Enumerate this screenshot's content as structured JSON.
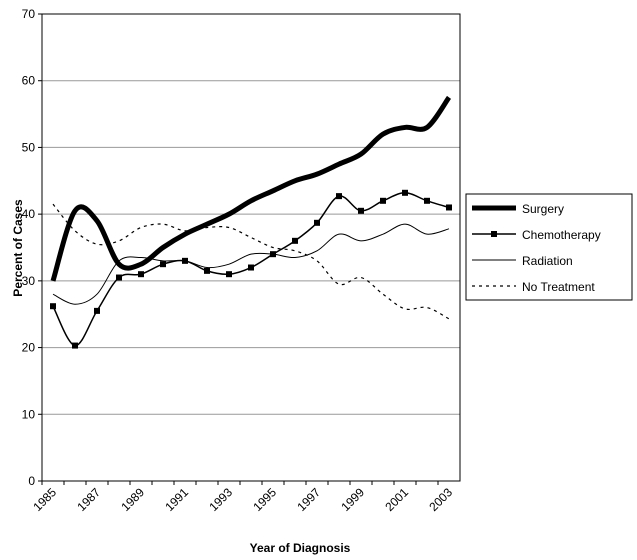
{
  "chart_data": {
    "type": "line",
    "x_label": "Year of Diagnosis",
    "y_label": "Percent of Cases",
    "categories": [
      "1985",
      null,
      "1987",
      null,
      "1989",
      null,
      "1991",
      null,
      "1993",
      null,
      "1995",
      null,
      "1997",
      null,
      "1999",
      null,
      "2001",
      null,
      "2003"
    ],
    "ylim": [
      0,
      70
    ],
    "yticks": [
      0,
      10,
      20,
      30,
      40,
      50,
      60,
      70
    ],
    "grid": true,
    "legend": "right",
    "series": [
      {
        "name": "Surgery",
        "color": "#000000",
        "width": 5,
        "dash": "solid",
        "marker": "none",
        "values": [
          30,
          40.5,
          39,
          32.5,
          32.5,
          35,
          37,
          38.5,
          40,
          42,
          43.5,
          45,
          46,
          47.5,
          49,
          52,
          53,
          53,
          57.5
        ]
      },
      {
        "name": "Chemotherapy",
        "color": "#000000",
        "width": 1.5,
        "dash": "solid",
        "marker": "square",
        "values": [
          26.2,
          20.3,
          25.5,
          30.5,
          31,
          32.5,
          33,
          31.5,
          31,
          32,
          34,
          36,
          38.7,
          42.7,
          40.5,
          42,
          43.2,
          42,
          41
        ]
      },
      {
        "name": "Radiation",
        "color": "#000000",
        "width": 1,
        "dash": "solid",
        "marker": "none",
        "values": [
          28,
          26.5,
          28,
          33,
          33.5,
          33,
          33,
          32,
          32.5,
          34,
          34,
          33.5,
          34.5,
          37,
          36,
          37,
          38.5,
          37,
          37.8
        ]
      },
      {
        "name": "No Treatment",
        "color": "#000000",
        "width": 1.2,
        "dash": "dotted",
        "marker": "none",
        "values": [
          41.5,
          37.5,
          35.5,
          36,
          38,
          38.5,
          37.5,
          38,
          38,
          36.5,
          35,
          34.5,
          33,
          29.5,
          30.5,
          28,
          25.8,
          26,
          24.3
        ]
      }
    ]
  }
}
